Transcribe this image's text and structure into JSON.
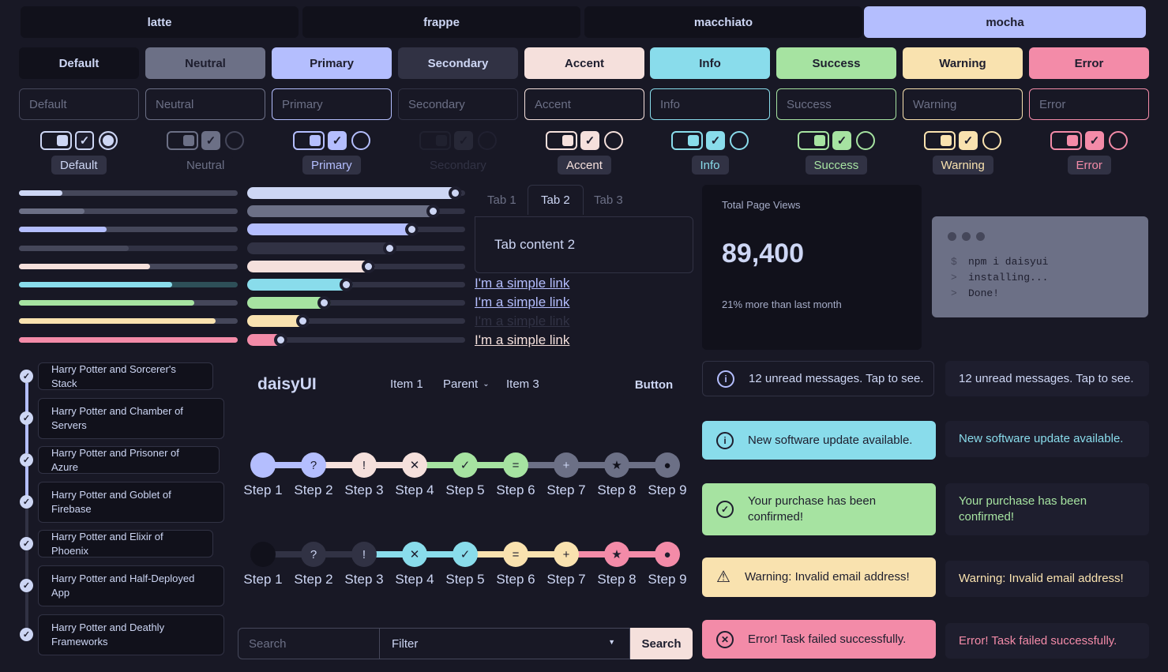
{
  "themes": [
    "latte",
    "frappe",
    "macchiato",
    "mocha"
  ],
  "buttons": [
    "Default",
    "Neutral",
    "Primary",
    "Secondary",
    "Accent",
    "Info",
    "Success",
    "Warning",
    "Error"
  ],
  "inputs": [
    "Default",
    "Neutral",
    "Primary",
    "Secondary",
    "Accent",
    "Info",
    "Success",
    "Warning",
    "Error"
  ],
  "badges": [
    "Default",
    "Neutral",
    "Primary",
    "Secondary",
    "Accent",
    "Info",
    "Success",
    "Warning",
    "Error"
  ],
  "colors": {
    "default": "#11111b",
    "neutral": "#6c7086",
    "primary": "#b4befe",
    "secondary": "#313244",
    "accent": "#f5e0dc",
    "info": "#89dceb",
    "success": "#a6e3a1",
    "warning": "#f9e2af",
    "error": "#f38ba8"
  },
  "progress": [
    0.2,
    0.3,
    0.4,
    0.5,
    0.6,
    0.7,
    0.8,
    0.9,
    1.0
  ],
  "sliders": [
    1.0,
    0.9,
    0.8,
    0.7,
    0.6,
    0.5,
    0.4,
    0.3,
    0.2
  ],
  "tabs": {
    "items": [
      "Tab 1",
      "Tab 2",
      "Tab 3"
    ],
    "content": "Tab content 2"
  },
  "links": [
    "I'm a simple link",
    "I'm a simple link",
    "I'm a simple link",
    "I'm a simple link"
  ],
  "stat": {
    "title": "Total Page Views",
    "value": "89,400",
    "desc": "21% more than last month"
  },
  "mockup": {
    "lines": [
      [
        "$",
        "npm i daisyui"
      ],
      [
        ">",
        "installing..."
      ],
      [
        ">",
        "Done!"
      ]
    ]
  },
  "timeline": [
    "Harry Potter and Sorcerer's Stack",
    "Harry Potter and Chamber of Servers",
    "Harry Potter and Prisoner of Azure",
    "Harry Potter and Goblet of Firebase",
    "Harry Potter and Elixir of Phoenix",
    "Harry Potter and Half-Deployed App",
    "Harry Potter and Deathly Frameworks"
  ],
  "navbar": {
    "brand": "daisyUI",
    "item1": "Item 1",
    "parent": "Parent",
    "item3": "Item 3",
    "button": "Button"
  },
  "steps1": {
    "labels": [
      "Step 1",
      "Step 2",
      "Step 3",
      "Step 4",
      "Step 5",
      "Step 6",
      "Step 7",
      "Step 8",
      "Step 9"
    ],
    "icons": [
      "",
      "?",
      "!",
      "✕",
      "✓",
      "=",
      "+",
      "★",
      "●"
    ]
  },
  "steps2": {
    "labels": [
      "Step 1",
      "Step 2",
      "Step 3",
      "Step 4",
      "Step 5",
      "Step 6",
      "Step 7",
      "Step 8",
      "Step 9"
    ],
    "icons": [
      "",
      "?",
      "!",
      "✕",
      "✓",
      "=",
      "+",
      "★",
      "●"
    ]
  },
  "search": {
    "placeholder": "Search",
    "filter": "Filter",
    "button": "Search"
  },
  "alerts": [
    "12 unread messages. Tap to see.",
    "New software update available.",
    "Your purchase has been confirmed!",
    "Warning: Invalid email address!",
    "Error! Task failed successfully."
  ]
}
